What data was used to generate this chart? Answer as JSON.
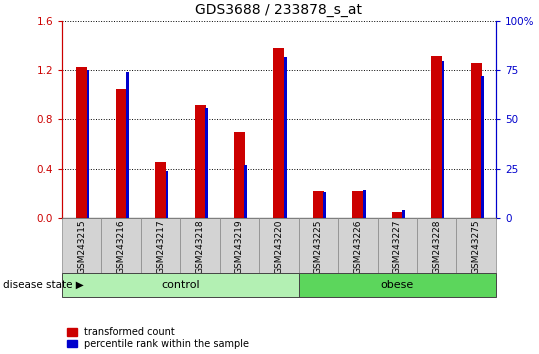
{
  "title": "GDS3688 / 233878_s_at",
  "samples": [
    "GSM243215",
    "GSM243216",
    "GSM243217",
    "GSM243218",
    "GSM243219",
    "GSM243220",
    "GSM243225",
    "GSM243226",
    "GSM243227",
    "GSM243228",
    "GSM243275"
  ],
  "transformed_count": [
    1.23,
    1.05,
    0.45,
    0.92,
    0.7,
    1.38,
    0.22,
    0.22,
    0.05,
    1.32,
    1.26
  ],
  "percentile_rank_pct": [
    75,
    74,
    24,
    56,
    27,
    82,
    13,
    14,
    4,
    80,
    72
  ],
  "red_color": "#CC0000",
  "blue_color": "#0000CC",
  "ylim_left": [
    0,
    1.6
  ],
  "ylim_right": [
    0,
    100
  ],
  "yticks_left": [
    0,
    0.4,
    0.8,
    1.2,
    1.6
  ],
  "yticks_right": [
    0,
    25,
    50,
    75,
    100
  ],
  "groups": [
    {
      "label": "control",
      "start": 0,
      "end": 5,
      "color": "#B3F0B3"
    },
    {
      "label": "obese",
      "start": 6,
      "end": 10,
      "color": "#5CD65C"
    }
  ],
  "disease_state_label": "disease state",
  "legend_red": "transformed count",
  "legend_blue": "percentile rank within the sample",
  "title_fontsize": 10,
  "tick_fontsize": 7.5,
  "label_fontsize": 6.5,
  "group_fontsize": 8
}
